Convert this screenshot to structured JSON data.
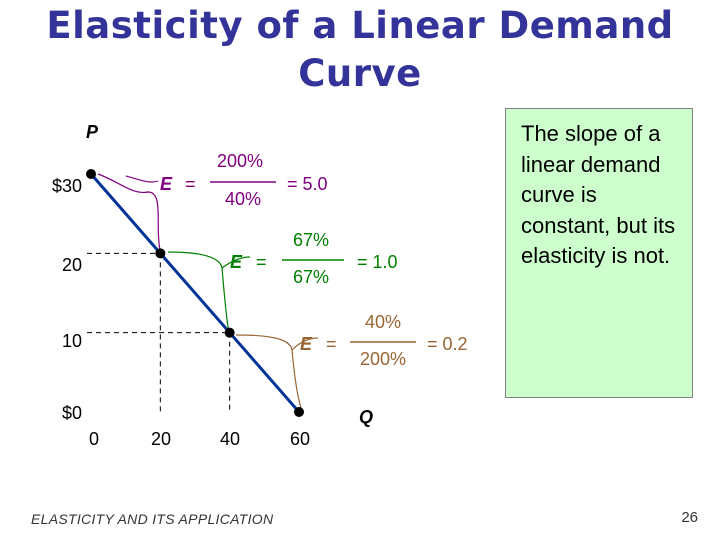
{
  "title": "Elasticity of a Linear Demand Curve",
  "note": "The slope of a linear demand curve is constant, but its elasticity is not.",
  "footer": "ELASTICITY AND ITS APPLICATION",
  "page_number": "26",
  "chart_data": {
    "type": "line",
    "xlabel": "Q",
    "ylabel": "P",
    "x_ticks": [
      "0",
      "20",
      "40",
      "60"
    ],
    "y_ticks": [
      "$0",
      "10",
      "20",
      "$30"
    ],
    "xlim": [
      0,
      60
    ],
    "ylim": [
      0,
      30
    ],
    "series": [
      {
        "points": [
          [
            0,
            30
          ],
          [
            20,
            20
          ],
          [
            40,
            10
          ],
          [
            60,
            0
          ]
        ],
        "color": "#003399"
      }
    ],
    "annotations": [
      {
        "label": "E",
        "equals": "=",
        "numerator": "200%",
        "denominator": "40%",
        "result": "= 5.0",
        "color": "#800080"
      },
      {
        "label": "E",
        "equals": "=",
        "numerator": "67%",
        "denominator": "67%",
        "result": "= 1.0",
        "color": "#008000"
      },
      {
        "label": "E",
        "equals": "=",
        "numerator": "40%",
        "denominator": "200%",
        "result": "= 0.2",
        "color": "#996633"
      }
    ]
  }
}
